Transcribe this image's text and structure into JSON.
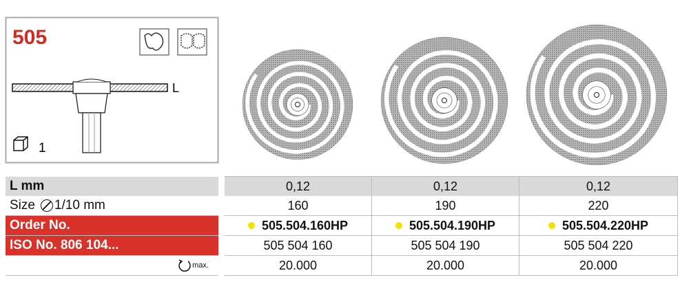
{
  "header": {
    "code": "505",
    "dimension": "L",
    "pack_quantity": "1"
  },
  "table": {
    "rows": [
      {
        "label": "L mm",
        "cells": [
          "0,12",
          "0,12",
          "0,12"
        ]
      },
      {
        "label": "Size",
        "unit": "1/10 mm",
        "cells": [
          "160",
          "190",
          "220"
        ]
      },
      {
        "label": "Order No.",
        "cells": [
          "505.504.160HP",
          "505.504.190HP",
          "505.504.220HP"
        ]
      },
      {
        "label": "ISO No. 806 104...",
        "cells": [
          "505 504 160",
          "505 504 190",
          "505 504 220"
        ]
      },
      {
        "label": "max.",
        "cells": [
          "20.000",
          "20.000",
          "20.000"
        ]
      }
    ]
  }
}
